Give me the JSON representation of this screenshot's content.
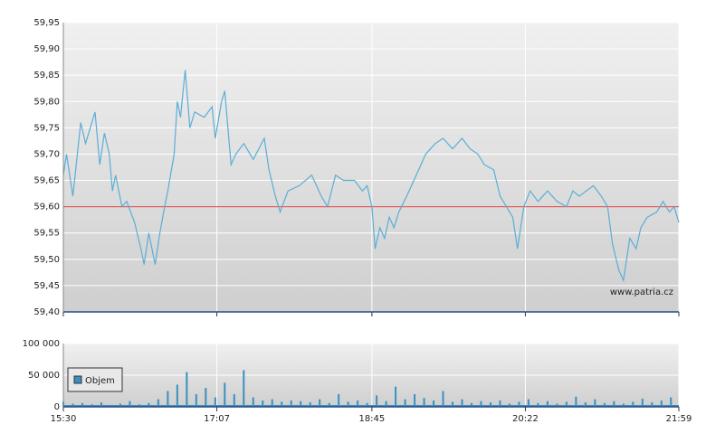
{
  "chart_data": [
    {
      "type": "line",
      "annotation": "www.patria.cz",
      "xlim": [
        0,
        389
      ],
      "xticks": [
        {
          "value": 0,
          "label": "15:30"
        },
        {
          "value": 97,
          "label": "17:07"
        },
        {
          "value": 195,
          "label": "18:45"
        },
        {
          "value": 292,
          "label": "20:22"
        },
        {
          "value": 389,
          "label": "21:59"
        }
      ],
      "ylim": [
        59.4,
        59.95
      ],
      "yticks": [
        {
          "value": 59.4,
          "label": "59,40"
        },
        {
          "value": 59.45,
          "label": "59,45"
        },
        {
          "value": 59.5,
          "label": "59,50"
        },
        {
          "value": 59.55,
          "label": "59,55"
        },
        {
          "value": 59.6,
          "label": "59,60"
        },
        {
          "value": 59.65,
          "label": "59,65"
        },
        {
          "value": 59.7,
          "label": "59,70"
        },
        {
          "value": 59.75,
          "label": "59,75"
        },
        {
          "value": 59.8,
          "label": "59,80"
        },
        {
          "value": 59.85,
          "label": "59,85"
        },
        {
          "value": 59.9,
          "label": "59,90"
        },
        {
          "value": 59.95,
          "label": "59,95"
        }
      ],
      "grid": true,
      "reference_line": {
        "value": 59.6,
        "color": "#e06060"
      },
      "x": [
        0,
        2,
        6,
        11,
        14,
        20,
        23,
        26,
        29,
        31,
        33,
        37,
        40,
        45,
        49,
        51,
        54,
        58,
        61,
        64,
        66,
        70,
        72,
        74,
        77,
        80,
        83,
        89,
        94,
        96,
        100,
        102,
        106,
        109,
        114,
        120,
        127,
        130,
        134,
        137,
        142,
        149,
        157,
        163,
        167,
        172,
        177,
        184,
        189,
        192,
        195,
        197,
        200,
        203,
        206,
        209,
        212,
        217,
        220,
        226,
        229,
        235,
        240,
        246,
        252,
        257,
        262,
        266,
        272,
        276,
        280,
        284,
        287,
        291,
        295,
        300,
        306,
        312,
        318,
        322,
        326,
        335,
        340,
        344,
        347,
        351,
        354,
        358,
        362,
        365,
        369,
        375,
        379,
        383,
        386,
        389
      ],
      "series": [
        {
          "color": "#5aaed6",
          "values": [
            59.66,
            59.7,
            59.62,
            59.76,
            59.72,
            59.78,
            59.68,
            59.74,
            59.7,
            59.63,
            59.66,
            59.6,
            59.61,
            59.57,
            59.52,
            59.49,
            59.55,
            59.49,
            59.55,
            59.6,
            59.63,
            59.7,
            59.8,
            59.77,
            59.86,
            59.75,
            59.78,
            59.77,
            59.79,
            59.73,
            59.8,
            59.82,
            59.68,
            59.7,
            59.72,
            59.69,
            59.73,
            59.67,
            59.62,
            59.59,
            59.63,
            59.64,
            59.66,
            59.62,
            59.6,
            59.66,
            59.65,
            59.65,
            59.63,
            59.64,
            59.6,
            59.52,
            59.56,
            59.54,
            59.58,
            59.56,
            59.59,
            59.62,
            59.64,
            59.68,
            59.7,
            59.72,
            59.73,
            59.71,
            59.73,
            59.71,
            59.7,
            59.68,
            59.67,
            59.62,
            59.6,
            59.58,
            59.52,
            59.6,
            59.63,
            59.61,
            59.63,
            59.61,
            59.6,
            59.63,
            59.62,
            59.64,
            59.62,
            59.6,
            59.53,
            59.48,
            59.46,
            59.54,
            59.52,
            59.56,
            59.58,
            59.59,
            59.61,
            59.59,
            59.6,
            59.57
          ]
        }
      ]
    },
    {
      "type": "bar",
      "xlim": [
        0,
        389
      ],
      "ylim": [
        0,
        100000
      ],
      "yticks": [
        0,
        {
          "value": 50000,
          "label": "50 000"
        },
        {
          "value": 100000,
          "label": "100 000"
        }
      ],
      "grid": true,
      "legend": "top-left",
      "x": [
        0,
        6,
        12,
        18,
        24,
        30,
        36,
        42,
        48,
        54,
        60,
        66,
        72,
        78,
        84,
        90,
        96,
        102,
        108,
        114,
        120,
        126,
        132,
        138,
        144,
        150,
        156,
        162,
        168,
        174,
        180,
        186,
        192,
        198,
        204,
        210,
        216,
        222,
        228,
        234,
        240,
        246,
        252,
        258,
        264,
        270,
        276,
        282,
        288,
        294,
        300,
        306,
        312,
        318,
        324,
        330,
        336,
        342,
        348,
        354,
        360,
        366,
        372,
        378,
        384
      ],
      "series": [
        {
          "name": "Objem",
          "color": "#3a8fc0",
          "values": [
            8000,
            5000,
            6000,
            4000,
            7000,
            3000,
            5000,
            9000,
            4000,
            6000,
            12000,
            25000,
            35000,
            55000,
            20000,
            30000,
            15000,
            38000,
            20000,
            58000,
            15000,
            10000,
            12000,
            8000,
            10000,
            9000,
            7000,
            12000,
            6000,
            20000,
            8000,
            10000,
            6000,
            18000,
            9000,
            32000,
            12000,
            20000,
            14000,
            10000,
            25000,
            8000,
            12000,
            6000,
            9000,
            7000,
            10000,
            5000,
            8000,
            12000,
            6000,
            9000,
            5000,
            8000,
            16000,
            7000,
            12000,
            6000,
            9000,
            5000,
            8000,
            13000,
            7000,
            10000,
            15000
          ]
        }
      ]
    }
  ]
}
